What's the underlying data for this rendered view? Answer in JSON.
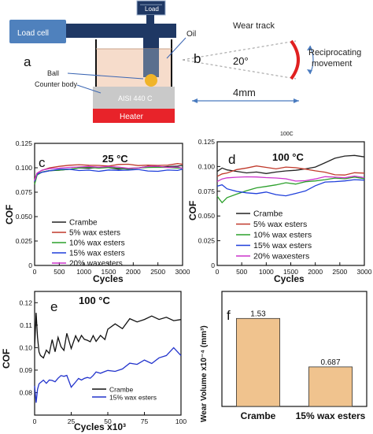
{
  "schematic": {
    "panel_a": "a",
    "panel_b": "b",
    "load_label": "Load",
    "load_cell_label": "Load cell",
    "oil_label": "Oil",
    "ball_label": "Ball",
    "counter_body_label": "Counter body",
    "aisi_label": "AISI 440 C",
    "heater_label": "Heater",
    "wear_track_label": "Wear track",
    "angle_label": "20°",
    "recip_line1": "Reciprocating",
    "recip_line2": "movement",
    "distance_label": "4mm",
    "colors": {
      "load_cell": "#4f81bd",
      "arm": "#1f3864",
      "block": "#c9c9c9",
      "heater": "#e8232a",
      "oil": "#f6dccb",
      "track": "#e02020"
    }
  },
  "chart_data": [
    {
      "panel": "c",
      "type": "line",
      "title": "25 °C",
      "xlabel": "Cycles",
      "ylabel": "COF",
      "xlim": [
        0,
        3000
      ],
      "ylim": [
        0,
        0.125
      ],
      "xticks": [
        "0",
        "500",
        "1000",
        "1500",
        "2000",
        "2500",
        "3000"
      ],
      "yticks": [
        "0",
        "0.025",
        "0.050",
        "0.075",
        "0.100",
        "0.125"
      ],
      "legend_position": "lower-center",
      "series": [
        {
          "name": "Crambe",
          "color": "#222222",
          "x": [
            0,
            50,
            150,
            300,
            500,
            700,
            900,
            1100,
            1300,
            1500,
            1700,
            1900,
            2100,
            2300,
            2500,
            2700,
            2900,
            3000
          ],
          "y": [
            0.085,
            0.093,
            0.095,
            0.097,
            0.098,
            0.099,
            0.1,
            0.099,
            0.1,
            0.1,
            0.099,
            0.1,
            0.1,
            0.101,
            0.1,
            0.101,
            0.102,
            0.103
          ]
        },
        {
          "name": "5% wax esters",
          "color": "#c0392b",
          "x": [
            0,
            50,
            150,
            300,
            500,
            700,
            900,
            1100,
            1300,
            1500,
            1700,
            1900,
            2100,
            2300,
            2500,
            2700,
            2900,
            3000
          ],
          "y": [
            0.088,
            0.095,
            0.098,
            0.1,
            0.101,
            0.102,
            0.103,
            0.103,
            0.103,
            0.102,
            0.103,
            0.103,
            0.102,
            0.103,
            0.103,
            0.103,
            0.104,
            0.103
          ]
        },
        {
          "name": "10% wax esters",
          "color": "#2ca02c",
          "x": [
            0,
            50,
            150,
            300,
            500,
            700,
            900,
            1100,
            1300,
            1500,
            1700,
            1900,
            2100,
            2300,
            2500,
            2700,
            2900,
            3000
          ],
          "y": [
            0.083,
            0.092,
            0.095,
            0.097,
            0.098,
            0.099,
            0.1,
            0.1,
            0.099,
            0.1,
            0.1,
            0.099,
            0.1,
            0.1,
            0.1,
            0.1,
            0.1,
            0.1
          ]
        },
        {
          "name": "15% wax esters",
          "color": "#1f3fdb",
          "x": [
            0,
            50,
            150,
            300,
            500,
            700,
            900,
            1100,
            1300,
            1500,
            1700,
            1900,
            2100,
            2300,
            2500,
            2700,
            2900,
            3000
          ],
          "y": [
            0.086,
            0.094,
            0.096,
            0.097,
            0.098,
            0.098,
            0.097,
            0.098,
            0.097,
            0.098,
            0.097,
            0.097,
            0.098,
            0.097,
            0.097,
            0.098,
            0.097,
            0.098
          ]
        },
        {
          "name": "20% waxesters",
          "color": "#cc33cc",
          "x": [
            0,
            50,
            150,
            300,
            500,
            700,
            900,
            1100,
            1300,
            1500,
            1700,
            1900,
            2100,
            2300,
            2500,
            2700,
            2900,
            3000
          ],
          "y": [
            0.087,
            0.094,
            0.097,
            0.099,
            0.1,
            0.101,
            0.101,
            0.101,
            0.1,
            0.101,
            0.101,
            0.1,
            0.1,
            0.101,
            0.101,
            0.1,
            0.101,
            0.1
          ]
        }
      ]
    },
    {
      "panel": "d",
      "type": "line",
      "title": "100 °C",
      "top_note": "100C",
      "xlabel": "Cycles",
      "ylabel": "COF",
      "xlim": [
        0,
        3000
      ],
      "ylim": [
        0,
        0.125
      ],
      "xticks": [
        "0",
        "500",
        "1000",
        "1500",
        "2000",
        "2500",
        "3000"
      ],
      "yticks": [
        "0",
        "0.025",
        "0.050",
        "0.075",
        "0.100",
        "0.125"
      ],
      "legend_position": "lower-center",
      "series": [
        {
          "name": "Crambe",
          "color": "#222222",
          "x": [
            0,
            100,
            200,
            400,
            600,
            800,
            1000,
            1200,
            1400,
            1600,
            1800,
            2000,
            2200,
            2400,
            2600,
            2800,
            3000
          ],
          "y": [
            0.095,
            0.098,
            0.096,
            0.095,
            0.094,
            0.095,
            0.093,
            0.094,
            0.095,
            0.096,
            0.098,
            0.1,
            0.104,
            0.108,
            0.11,
            0.111,
            0.11
          ]
        },
        {
          "name": "5% wax esters",
          "color": "#c0392b",
          "x": [
            0,
            100,
            200,
            400,
            600,
            800,
            1000,
            1200,
            1400,
            1600,
            1800,
            2000,
            2200,
            2400,
            2600,
            2800,
            3000
          ],
          "y": [
            0.09,
            0.093,
            0.094,
            0.097,
            0.098,
            0.1,
            0.099,
            0.098,
            0.1,
            0.099,
            0.097,
            0.095,
            0.094,
            0.092,
            0.092,
            0.094,
            0.093
          ]
        },
        {
          "name": "10% wax esters",
          "color": "#2ca02c",
          "x": [
            0,
            100,
            200,
            400,
            600,
            800,
            1000,
            1200,
            1400,
            1600,
            1800,
            2000,
            2200,
            2400,
            2600,
            2800,
            3000
          ],
          "y": [
            0.07,
            0.063,
            0.068,
            0.072,
            0.076,
            0.079,
            0.08,
            0.081,
            0.083,
            0.082,
            0.085,
            0.086,
            0.087,
            0.088,
            0.087,
            0.089,
            0.088
          ]
        },
        {
          "name": "15% wax esters",
          "color": "#1f3fdb",
          "x": [
            0,
            100,
            200,
            400,
            600,
            800,
            1000,
            1200,
            1400,
            1600,
            1800,
            2000,
            2200,
            2400,
            2600,
            2800,
            3000
          ],
          "y": [
            0.08,
            0.082,
            0.078,
            0.075,
            0.073,
            0.072,
            0.074,
            0.072,
            0.071,
            0.073,
            0.075,
            0.08,
            0.084,
            0.085,
            0.086,
            0.087,
            0.086
          ]
        },
        {
          "name": "20% waxesters",
          "color": "#cc33cc",
          "x": [
            0,
            100,
            200,
            400,
            600,
            800,
            1000,
            1200,
            1400,
            1600,
            1800,
            2000,
            2200,
            2400,
            2600,
            2800,
            3000
          ],
          "y": [
            0.085,
            0.087,
            0.088,
            0.089,
            0.09,
            0.09,
            0.089,
            0.088,
            0.087,
            0.085,
            0.086,
            0.088,
            0.09,
            0.089,
            0.088,
            0.09,
            0.089
          ]
        }
      ]
    },
    {
      "panel": "e",
      "type": "line",
      "title": "100 °C",
      "xlabel": "Cycles x10³",
      "ylabel": "COF",
      "xlim": [
        0,
        100
      ],
      "ylim": [
        0.07,
        0.125
      ],
      "xticks": [
        "0",
        "25",
        "50",
        "75",
        "100"
      ],
      "yticks": [
        "0.08",
        "0.09",
        "0.10",
        "0.11",
        "0.12"
      ],
      "legend_position": "lower-right",
      "series": [
        {
          "name": "Crambe",
          "color": "#111111",
          "x": [
            0,
            1,
            2,
            3,
            4,
            6,
            8,
            10,
            12,
            14,
            16,
            18,
            20,
            22,
            25,
            28,
            30,
            32,
            34,
            36,
            38,
            40,
            42,
            45,
            48,
            50,
            55,
            60,
            65,
            70,
            75,
            80,
            85,
            90,
            95,
            100
          ],
          "y": [
            0.1,
            0.115,
            0.104,
            0.098,
            0.097,
            0.096,
            0.099,
            0.097,
            0.103,
            0.098,
            0.105,
            0.101,
            0.099,
            0.106,
            0.099,
            0.105,
            0.103,
            0.106,
            0.104,
            0.103,
            0.102,
            0.105,
            0.103,
            0.106,
            0.104,
            0.108,
            0.11,
            0.108,
            0.113,
            0.112,
            0.113,
            0.114,
            0.112,
            0.113,
            0.112,
            0.113
          ]
        },
        {
          "name": "15% wax esters",
          "color": "#2233cc",
          "x": [
            0,
            1,
            2,
            3,
            4,
            6,
            8,
            10,
            12,
            14,
            16,
            18,
            20,
            22,
            25,
            28,
            30,
            32,
            34,
            36,
            38,
            40,
            42,
            45,
            48,
            50,
            55,
            60,
            65,
            70,
            75,
            80,
            85,
            90,
            95,
            100
          ],
          "y": [
            0.083,
            0.076,
            0.082,
            0.084,
            0.084,
            0.085,
            0.084,
            0.086,
            0.086,
            0.085,
            0.086,
            0.087,
            0.087,
            0.088,
            0.083,
            0.085,
            0.086,
            0.085,
            0.086,
            0.087,
            0.087,
            0.088,
            0.089,
            0.088,
            0.089,
            0.09,
            0.09,
            0.091,
            0.093,
            0.092,
            0.094,
            0.093,
            0.096,
            0.097,
            0.1,
            0.096
          ]
        }
      ]
    },
    {
      "panel": "f",
      "type": "bar",
      "ylabel": "Wear Volume x10⁻⁴ (mm³)",
      "categories": [
        "Crambe",
        "15% wax esters"
      ],
      "values": [
        1.53,
        0.687
      ],
      "value_labels": [
        "1.53",
        "0.687"
      ],
      "bar_color": "#f0c38e",
      "ylim": [
        0,
        2
      ],
      "xlabel": ""
    }
  ]
}
